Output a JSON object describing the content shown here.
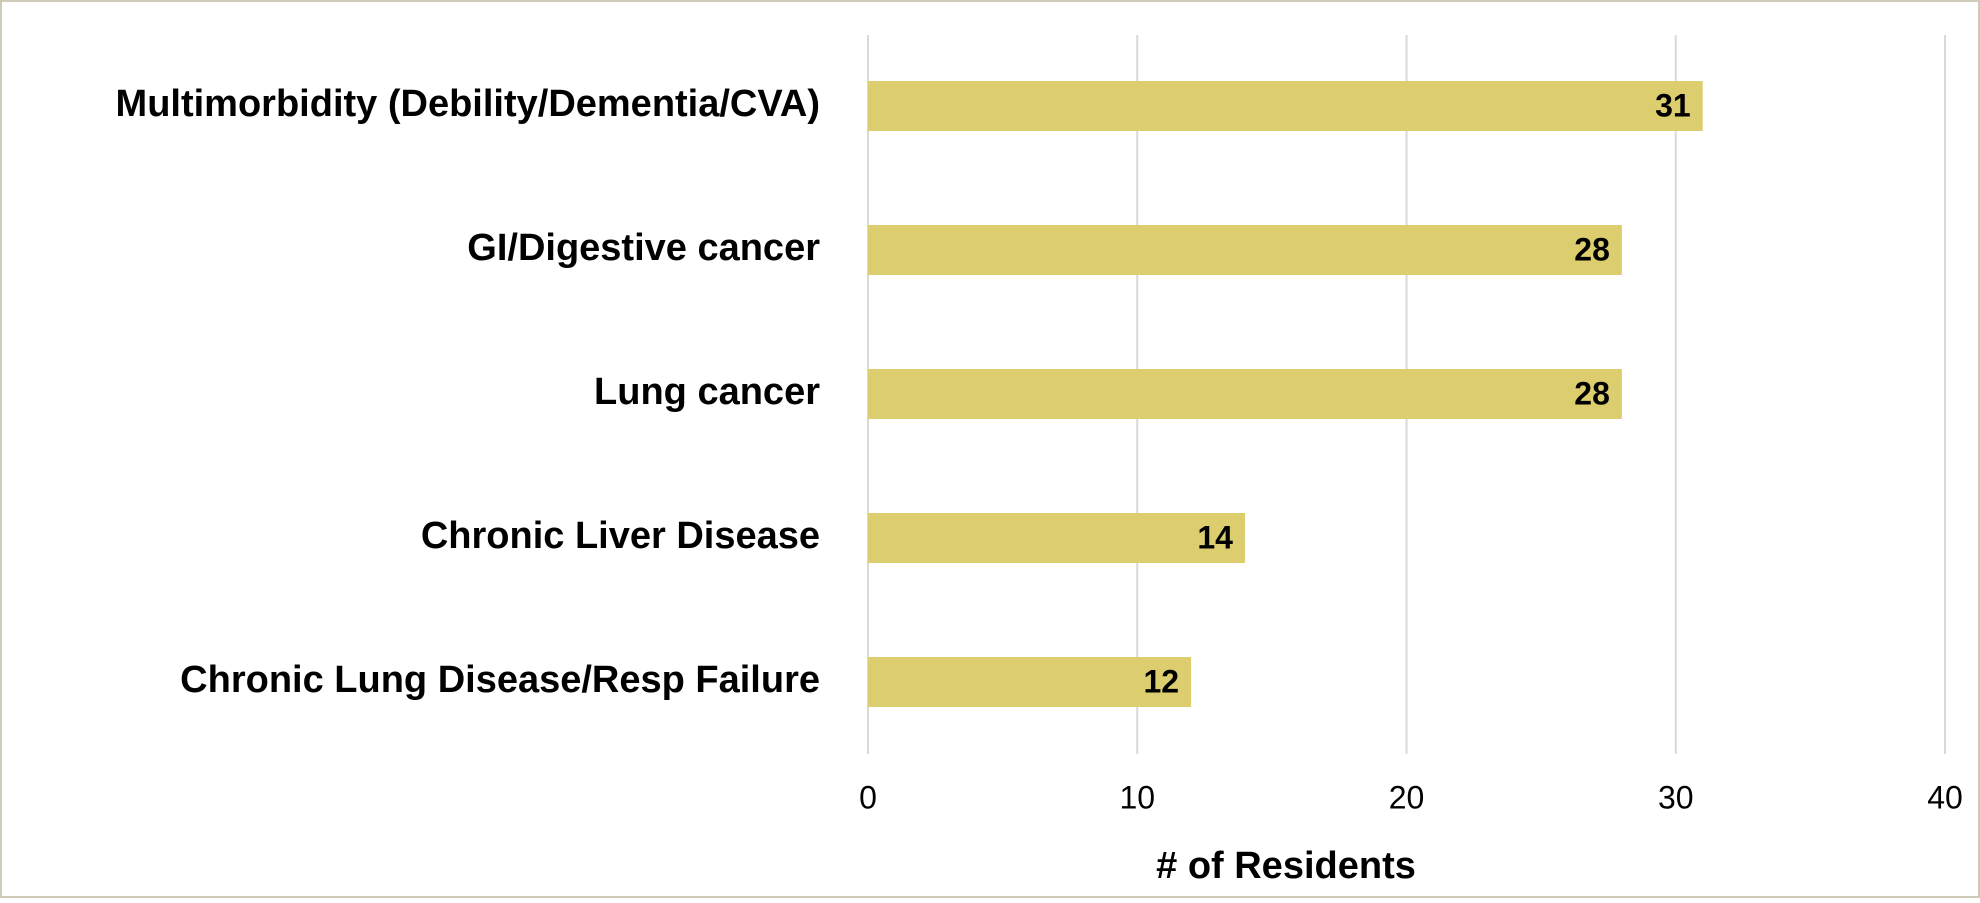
{
  "chart_data": {
    "type": "barh",
    "categories": [
      "Multimorbidity (Debility/Dementia/CVA)",
      "GI/Digestive cancer",
      "Lung cancer",
      "Chronic Liver Disease",
      "Chronic Lung Disease/Resp Failure"
    ],
    "values": [
      31,
      28,
      28,
      14,
      12
    ],
    "color": "#dccd6e",
    "xlabel": "# of Residents",
    "xlim": [
      0,
      40
    ],
    "xticks": [
      0,
      10,
      20,
      30,
      40
    ],
    "grid": true
  }
}
